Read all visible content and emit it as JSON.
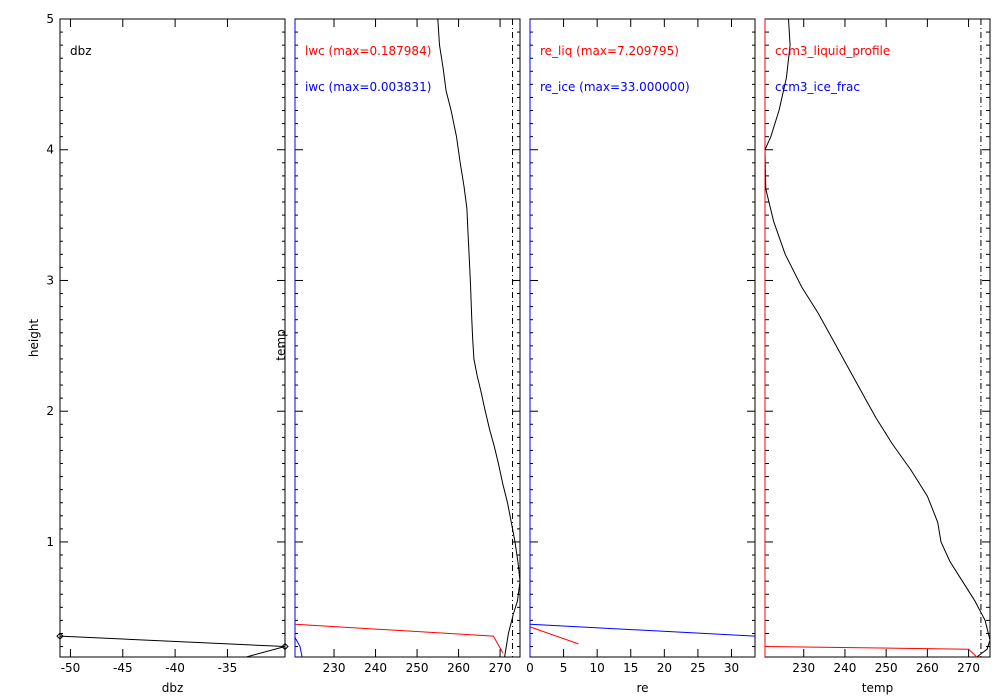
{
  "figure": {
    "shared_ylabel": "height",
    "ylim": [
      0.12,
      5
    ],
    "yticks": [
      1,
      2,
      3,
      4,
      5
    ]
  },
  "chart_data": [
    {
      "type": "line",
      "xlabel": "dbz",
      "ylabel": "height",
      "xlim": [
        -51,
        -29.5
      ],
      "xticks": [
        -50,
        -45,
        -40,
        -35
      ],
      "xtick_labels": [
        "-50",
        "-45",
        "-40",
        "-35"
      ],
      "series_labels": [
        {
          "text": "dbz",
          "color": "#000000"
        }
      ],
      "series": [
        {
          "color": "#000000",
          "x": [
            -51.0,
            -29.5
          ],
          "y": [
            0.28,
            0.2
          ]
        },
        {
          "color": "#000000",
          "x": [
            -33.2,
            -29.5
          ],
          "y": [
            0.12,
            0.2
          ]
        }
      ],
      "markers": [
        {
          "marker": "diamond",
          "color": "#000000",
          "x": -51.0,
          "y": 0.28
        },
        {
          "marker": "diamond",
          "color": "#000000",
          "x": -29.5,
          "y": 0.2
        }
      ]
    },
    {
      "type": "line",
      "xlabel": "",
      "ylabel": "temp",
      "xlim": [
        220.6,
        274.8
      ],
      "xticks": [
        230,
        240,
        250,
        260,
        270
      ],
      "xtick_labels": [
        "230",
        "240",
        "250",
        "260",
        "270"
      ],
      "series_labels": [
        {
          "text": "lwc (max=0.187984)",
          "color": "#ff0000"
        },
        {
          "text": "iwc (max=0.003831)",
          "color": "#0000ff"
        }
      ],
      "series": [
        {
          "color": "#000000",
          "x": [
            255.0,
            255.4,
            256.3,
            257.0,
            258.2,
            259.5,
            260.4,
            261.3,
            262.0,
            262.3,
            262.6,
            262.9,
            263.2,
            263.4,
            263.7,
            264.5,
            265.4,
            266.3,
            267.4,
            268.6,
            269.6,
            270.6,
            271.8,
            272.7,
            273.6,
            274.3,
            274.8,
            274.2,
            273.2,
            272.0,
            271.1
          ],
          "y": [
            5.0,
            4.8,
            4.62,
            4.45,
            4.3,
            4.1,
            3.9,
            3.72,
            3.55,
            3.35,
            3.15,
            2.95,
            2.7,
            2.55,
            2.4,
            2.27,
            2.15,
            2.02,
            1.87,
            1.73,
            1.6,
            1.45,
            1.3,
            1.15,
            1.0,
            0.85,
            0.7,
            0.55,
            0.45,
            0.3,
            0.12
          ]
        },
        {
          "color": "#ff0000",
          "x": [
            220.6,
            268.4,
            270.7
          ],
          "y": [
            0.37,
            0.28,
            0.15
          ]
        },
        {
          "color": "#0000ff",
          "x": [
            220.6,
            221.8,
            222.3
          ],
          "y": [
            0.27,
            0.2,
            0.12
          ]
        }
      ],
      "vlines": [
        {
          "x": 273.0,
          "style": "dashdot"
        }
      ],
      "axis_lines": [
        {
          "x": 220.6,
          "color": "#0000ff"
        }
      ]
    },
    {
      "type": "line",
      "xlabel": "re",
      "ylabel": "",
      "xlim": [
        0,
        33.5
      ],
      "xticks": [
        0,
        5,
        10,
        15,
        20,
        25,
        30
      ],
      "xtick_labels": [
        "0",
        "5",
        "10",
        "15",
        "20",
        "25",
        "30"
      ],
      "series_labels": [
        {
          "text": "re_liq (max=7.209795)",
          "color": "#ff0000"
        },
        {
          "text": "re_ice (max=33.000000)",
          "color": "#0000ff"
        }
      ],
      "series": [
        {
          "color": "#0000ff",
          "x": [
            0,
            33.5
          ],
          "y": [
            0.37,
            0.28
          ]
        },
        {
          "color": "#ff0000",
          "x": [
            0,
            7.2
          ],
          "y": [
            0.35,
            0.22
          ]
        }
      ],
      "vlines": [],
      "axis_lines": [
        {
          "x": 0,
          "color": "#0000ff"
        }
      ]
    },
    {
      "type": "line",
      "xlabel": "temp",
      "ylabel": "",
      "xlim": [
        220.6,
        275.2
      ],
      "xticks": [
        230,
        240,
        250,
        260,
        270
      ],
      "xtick_labels": [
        "230",
        "240",
        "250",
        "260",
        "270"
      ],
      "series_labels": [
        {
          "text": "ccm3_liquid_profile",
          "color": "#ff0000"
        },
        {
          "text": "ccm3_ice_frac",
          "color": "#0000ff"
        }
      ],
      "series": [
        {
          "color": "#000000",
          "x": [
            226.3,
            226.7,
            225.8,
            224.0,
            222.0,
            220.6,
            220.8,
            222.7,
            225.5,
            229.5,
            233.5,
            237.0,
            240.5,
            244.0,
            247.5,
            251.5,
            256.0,
            260.0,
            262.5,
            263.3,
            265.5,
            268.5,
            271.5,
            274.0,
            275.2,
            274.5,
            272.0
          ],
          "y": [
            5.0,
            4.8,
            4.55,
            4.3,
            4.1,
            4.0,
            3.7,
            3.45,
            3.2,
            2.95,
            2.75,
            2.55,
            2.35,
            2.15,
            1.95,
            1.75,
            1.55,
            1.35,
            1.15,
            1.0,
            0.85,
            0.7,
            0.55,
            0.4,
            0.25,
            0.18,
            0.12
          ]
        },
        {
          "color": "#ff0000",
          "x": [
            220.6,
            220.6,
            270.0,
            272.0
          ],
          "y": [
            4.0,
            0.2,
            0.18,
            0.12
          ]
        }
      ],
      "vlines": [
        {
          "x": 273.0,
          "style": "dashdot"
        }
      ],
      "axis_lines": [
        {
          "x": 220.6,
          "color": "#ff0000"
        }
      ],
      "dense_yticks": true
    }
  ]
}
